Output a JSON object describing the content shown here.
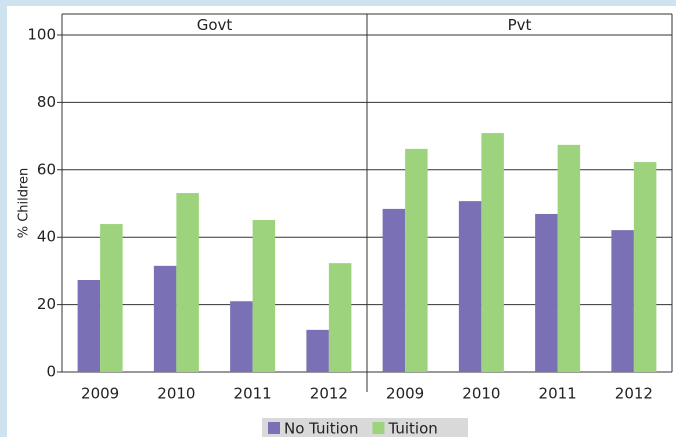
{
  "chart_data": {
    "type": "bar",
    "ylabel": "% Children",
    "ylim": [
      0,
      100
    ],
    "yticks": [
      0,
      20,
      40,
      60,
      80,
      100
    ],
    "grid": true,
    "legend": "bottom",
    "facets": [
      {
        "title": "Govt",
        "categories": [
          "2009",
          "2010",
          "2011",
          "2012"
        ]
      },
      {
        "title": "Pvt",
        "categories": [
          "2009",
          "2010",
          "2011",
          "2012"
        ]
      }
    ],
    "series": [
      {
        "name": "No Tuition",
        "color": "#7a70b5",
        "values": [
          [
            27.3,
            31.5,
            21,
            12.5
          ],
          [
            48.4,
            50.7,
            46.9,
            42.1
          ]
        ]
      },
      {
        "name": "Tuition",
        "color": "#9dd37d",
        "values": [
          [
            43.9,
            53.1,
            45.1,
            32.3
          ],
          [
            66.2,
            70.9,
            67.4,
            62.3
          ]
        ]
      }
    ]
  }
}
